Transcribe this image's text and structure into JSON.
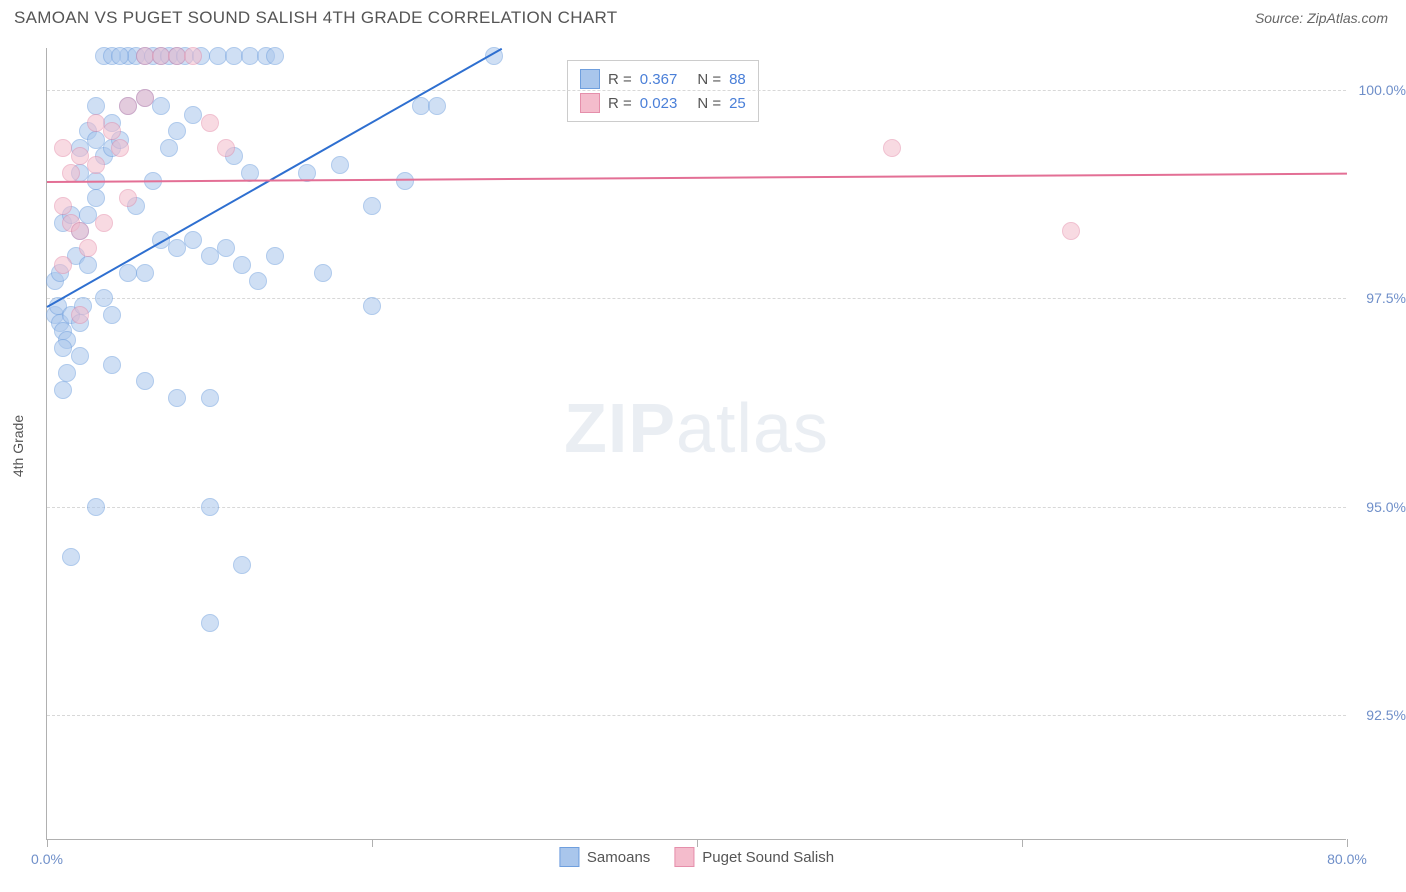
{
  "header": {
    "title": "SAMOAN VS PUGET SOUND SALISH 4TH GRADE CORRELATION CHART",
    "source_label": "Source: ",
    "source_value": "ZipAtlas.com"
  },
  "watermark": {
    "zip": "ZIP",
    "atlas": "atlas"
  },
  "chart": {
    "type": "scatter",
    "y_axis_label": "4th Grade",
    "background_color": "#ffffff",
    "grid_color": "#d8d8d8",
    "axis_color": "#b0b0b0",
    "tick_label_color": "#6f8fc9",
    "tick_fontsize": 14,
    "axis_label_fontsize": 14,
    "xlim": [
      0,
      80
    ],
    "ylim": [
      91,
      100.5
    ],
    "x_ticks": [
      {
        "pos": 0,
        "label": "0.0%"
      },
      {
        "pos": 20,
        "label": ""
      },
      {
        "pos": 40,
        "label": ""
      },
      {
        "pos": 60,
        "label": ""
      },
      {
        "pos": 80,
        "label": "80.0%"
      }
    ],
    "y_ticks": [
      {
        "pos": 92.5,
        "label": "92.5%"
      },
      {
        "pos": 95.0,
        "label": "95.0%"
      },
      {
        "pos": 97.5,
        "label": "97.5%"
      },
      {
        "pos": 100.0,
        "label": "100.0%"
      }
    ],
    "series": [
      {
        "name": "Samoans",
        "color_fill": "#a9c6ec",
        "color_border": "#6f9fde",
        "line_color": "#2e6fd0",
        "marker_size": 18,
        "R": "0.367",
        "N": "88",
        "trend": {
          "x1": 0,
          "y1": 97.4,
          "x2": 28,
          "y2": 100.5
        },
        "points": [
          [
            0.5,
            97.3
          ],
          [
            0.8,
            97.2
          ],
          [
            1.0,
            97.1
          ],
          [
            1.2,
            97.0
          ],
          [
            0.7,
            97.4
          ],
          [
            1.5,
            97.3
          ],
          [
            2.0,
            97.2
          ],
          [
            2.2,
            97.4
          ],
          [
            0.5,
            97.7
          ],
          [
            0.8,
            97.8
          ],
          [
            1.0,
            96.9
          ],
          [
            1.2,
            96.6
          ],
          [
            1.8,
            98.0
          ],
          [
            2.0,
            98.3
          ],
          [
            2.5,
            97.9
          ],
          [
            3.0,
            98.7
          ],
          [
            1.0,
            98.4
          ],
          [
            1.5,
            98.5
          ],
          [
            2.0,
            99.0
          ],
          [
            2.5,
            98.5
          ],
          [
            3.0,
            98.9
          ],
          [
            3.5,
            99.2
          ],
          [
            4.0,
            99.3
          ],
          [
            4.5,
            99.4
          ],
          [
            5.0,
            100.4
          ],
          [
            5.5,
            100.4
          ],
          [
            6.0,
            100.4
          ],
          [
            6.5,
            100.4
          ],
          [
            7.0,
            100.4
          ],
          [
            7.5,
            100.4
          ],
          [
            8.0,
            100.4
          ],
          [
            8.5,
            100.4
          ],
          [
            9.5,
            100.4
          ],
          [
            10.5,
            100.4
          ],
          [
            11.5,
            100.4
          ],
          [
            12.5,
            100.4
          ],
          [
            13.5,
            100.4
          ],
          [
            14.0,
            100.4
          ],
          [
            4.0,
            99.6
          ],
          [
            5.0,
            99.8
          ],
          [
            6.0,
            99.9
          ],
          [
            7.0,
            99.8
          ],
          [
            8.0,
            99.5
          ],
          [
            9.0,
            99.7
          ],
          [
            3.0,
            99.8
          ],
          [
            3.5,
            97.5
          ],
          [
            4.0,
            97.3
          ],
          [
            5.0,
            97.8
          ],
          [
            6.0,
            97.8
          ],
          [
            7.0,
            98.2
          ],
          [
            8.0,
            98.1
          ],
          [
            9.0,
            98.2
          ],
          [
            10.0,
            98.0
          ],
          [
            11.0,
            98.1
          ],
          [
            12.0,
            97.9
          ],
          [
            14.0,
            98.0
          ],
          [
            16.0,
            99.0
          ],
          [
            18.0,
            99.1
          ],
          [
            20.0,
            98.6
          ],
          [
            22.0,
            98.9
          ],
          [
            23.0,
            99.8
          ],
          [
            24.0,
            99.8
          ],
          [
            27.5,
            100.4
          ],
          [
            4.0,
            96.7
          ],
          [
            6.0,
            96.5
          ],
          [
            8.0,
            96.3
          ],
          [
            10.0,
            96.3
          ],
          [
            11.5,
            99.2
          ],
          [
            12.5,
            99.0
          ],
          [
            3.0,
            95.0
          ],
          [
            10.0,
            95.0
          ],
          [
            1.5,
            94.4
          ],
          [
            12.0,
            94.3
          ],
          [
            10.0,
            93.6
          ],
          [
            13.0,
            97.7
          ],
          [
            17.0,
            97.8
          ],
          [
            20.0,
            97.4
          ],
          [
            2.5,
            99.5
          ],
          [
            3.0,
            99.4
          ],
          [
            3.5,
            100.4
          ],
          [
            4.0,
            100.4
          ],
          [
            4.5,
            100.4
          ],
          [
            5.5,
            98.6
          ],
          [
            6.5,
            98.9
          ],
          [
            7.5,
            99.3
          ],
          [
            2.0,
            96.8
          ],
          [
            1.0,
            96.4
          ],
          [
            2.0,
            99.3
          ]
        ]
      },
      {
        "name": "Puget Sound Salish",
        "color_fill": "#f4bccc",
        "color_border": "#e58fab",
        "line_color": "#e36f95",
        "marker_size": 18,
        "R": "0.023",
        "N": "25",
        "trend": {
          "x1": 0,
          "y1": 98.9,
          "x2": 80,
          "y2": 99.0
        },
        "points": [
          [
            1.0,
            98.6
          ],
          [
            1.5,
            98.4
          ],
          [
            2.0,
            98.3
          ],
          [
            2.5,
            98.1
          ],
          [
            1.0,
            97.9
          ],
          [
            2.0,
            97.3
          ],
          [
            1.5,
            99.0
          ],
          [
            2.0,
            99.2
          ],
          [
            3.0,
            99.6
          ],
          [
            4.0,
            99.5
          ],
          [
            5.0,
            99.8
          ],
          [
            6.0,
            99.9
          ],
          [
            3.0,
            99.1
          ],
          [
            4.5,
            99.3
          ],
          [
            6.0,
            100.4
          ],
          [
            7.0,
            100.4
          ],
          [
            8.0,
            100.4
          ],
          [
            9.0,
            100.4
          ],
          [
            10.0,
            99.6
          ],
          [
            11.0,
            99.3
          ],
          [
            52.0,
            99.3
          ],
          [
            63.0,
            98.3
          ],
          [
            3.5,
            98.4
          ],
          [
            5.0,
            98.7
          ],
          [
            1.0,
            99.3
          ]
        ]
      }
    ],
    "legend_top": {
      "r_label": "R =",
      "n_label": "N ="
    },
    "legend_bottom": [
      {
        "label": "Samoans",
        "fill": "#a9c6ec",
        "border": "#6f9fde"
      },
      {
        "label": "Puget Sound Salish",
        "fill": "#f4bccc",
        "border": "#e58fab"
      }
    ]
  }
}
